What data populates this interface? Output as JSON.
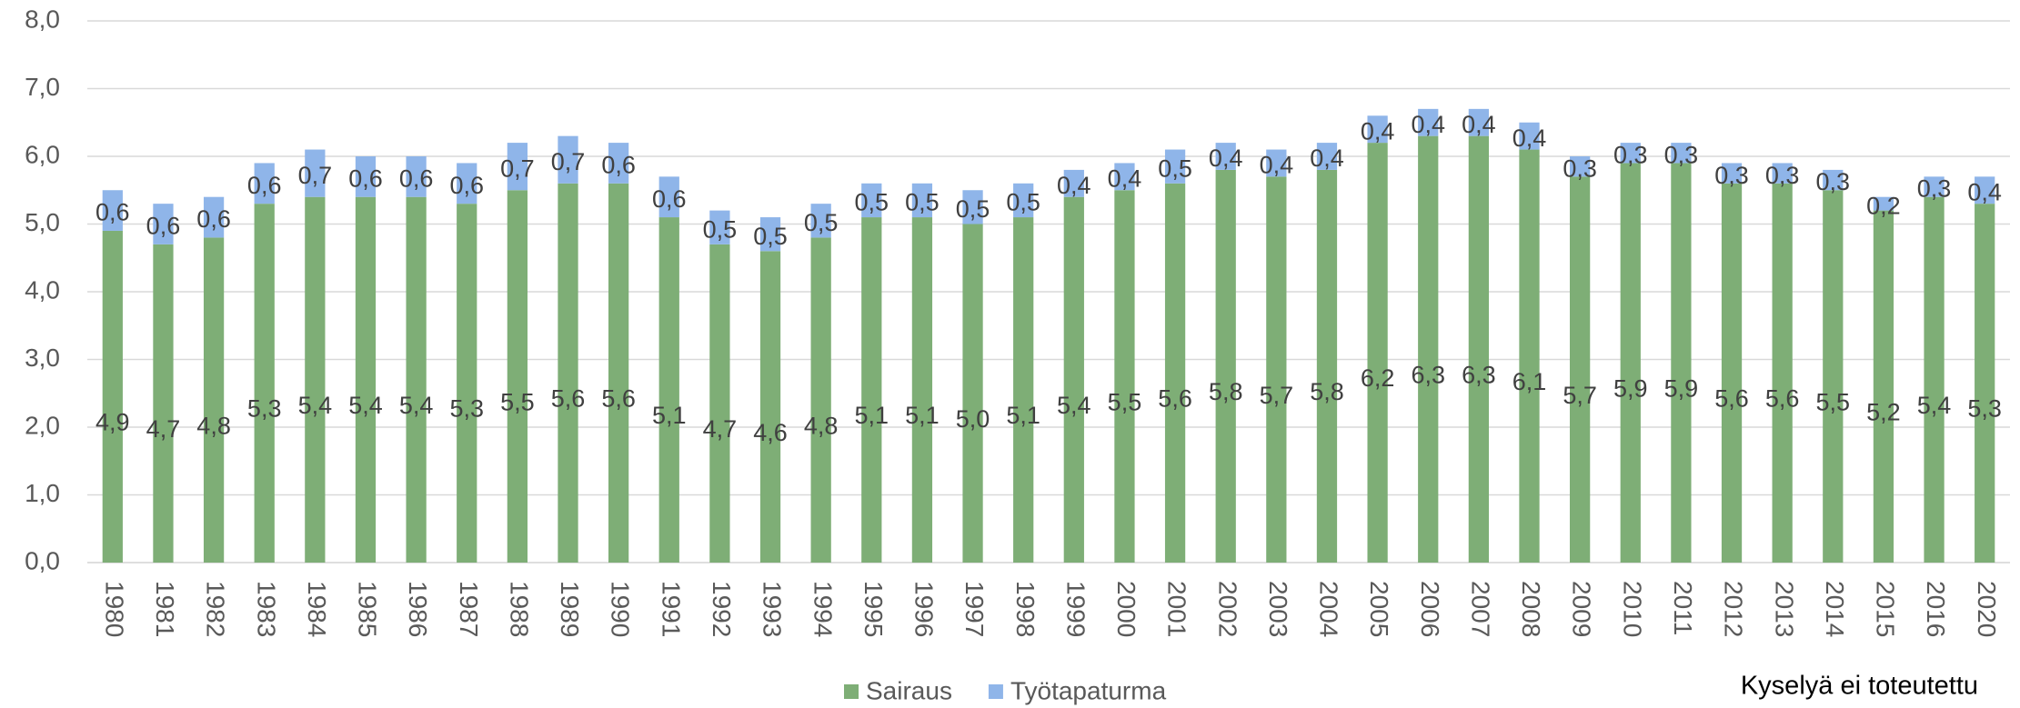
{
  "chart_data": {
    "type": "stacked_bar",
    "categories": [
      "1980",
      "1981",
      "1982",
      "1983",
      "1984",
      "1985",
      "1986",
      "1987",
      "1988",
      "1989",
      "1990",
      "1991",
      "1992",
      "1993",
      "1994",
      "1995",
      "1996",
      "1997",
      "1998",
      "1999",
      "2000",
      "2001",
      "2002",
      "2003",
      "2004",
      "2005",
      "2006",
      "2007",
      "2008",
      "2009",
      "2010",
      "2011",
      "2012",
      "2013",
      "2014",
      "2015",
      "2016",
      "2020"
    ],
    "series": [
      {
        "name": "Sairaus",
        "color": "#7eae76",
        "values": [
          4.9,
          4.7,
          4.8,
          5.3,
          5.4,
          5.4,
          5.4,
          5.3,
          5.5,
          5.6,
          5.6,
          5.1,
          4.7,
          4.6,
          4.8,
          5.1,
          5.1,
          5.0,
          5.1,
          5.4,
          5.5,
          5.6,
          5.8,
          5.7,
          5.8,
          6.2,
          6.3,
          6.3,
          6.1,
          5.7,
          5.9,
          5.9,
          5.6,
          5.6,
          5.5,
          5.2,
          5.4,
          5.3
        ],
        "value_labels": [
          "4,9",
          "4,7",
          "4,8",
          "5,3",
          "5,4",
          "5,4",
          "5,4",
          "5,3",
          "5,5",
          "5,6",
          "5,6",
          "5,1",
          "4,7",
          "4,6",
          "4,8",
          "5,1",
          "5,1",
          "5,0",
          "5,1",
          "5,4",
          "5,5",
          "5,6",
          "5,8",
          "5,7",
          "5,8",
          "6,2",
          "6,3",
          "6,3",
          "6,1",
          "5,7",
          "5,9",
          "5,9",
          "5,6",
          "5,6",
          "5,5",
          "5,2",
          "5,4",
          "5,3"
        ]
      },
      {
        "name": "Työtapaturma",
        "color": "#8fb5e9",
        "values": [
          0.6,
          0.6,
          0.6,
          0.6,
          0.7,
          0.6,
          0.6,
          0.6,
          0.7,
          0.7,
          0.6,
          0.6,
          0.5,
          0.5,
          0.5,
          0.5,
          0.5,
          0.5,
          0.5,
          0.4,
          0.4,
          0.5,
          0.4,
          0.4,
          0.4,
          0.4,
          0.4,
          0.4,
          0.4,
          0.3,
          0.3,
          0.3,
          0.3,
          0.3,
          0.3,
          0.2,
          0.3,
          0.4
        ],
        "value_labels": [
          "0,6",
          "0,6",
          "0,6",
          "0,6",
          "0,7",
          "0,6",
          "0,6",
          "0,6",
          "0,7",
          "0,7",
          "0,6",
          "0,6",
          "0,5",
          "0,5",
          "0,5",
          "0,5",
          "0,5",
          "0,5",
          "0,5",
          "0,4",
          "0,4",
          "0,5",
          "0,4",
          "0,4",
          "0,4",
          "0,4",
          "0,4",
          "0,4",
          "0,4",
          "0,3",
          "0,3",
          "0,3",
          "0,3",
          "0,3",
          "0,3",
          "0,2",
          "0,3",
          "0,4"
        ]
      }
    ],
    "ylim": [
      0,
      8
    ],
    "yticks": [
      {
        "value": 0,
        "label": "0,0"
      },
      {
        "value": 1,
        "label": "1,0"
      },
      {
        "value": 2,
        "label": "2,0"
      },
      {
        "value": 3,
        "label": "3,0"
      },
      {
        "value": 4,
        "label": "4,0"
      },
      {
        "value": 5,
        "label": "5,0"
      },
      {
        "value": 6,
        "label": "6,0"
      },
      {
        "value": 7,
        "label": "7,0"
      },
      {
        "value": 8,
        "label": "8,0"
      }
    ],
    "grid": true,
    "legend": "bottom",
    "annotation": "Kyselyä ei toteutettu"
  }
}
